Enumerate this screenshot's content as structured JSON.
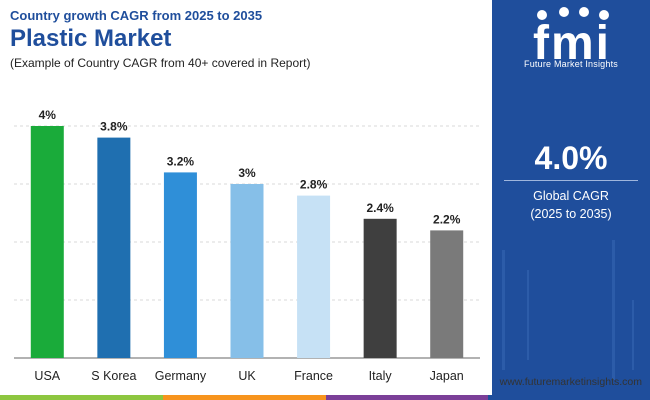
{
  "header": {
    "subtitle": "Country growth CAGR from 2025 to 2035",
    "title": "Plastic Market",
    "note": "(Example of Country CAGR from 40+ covered in Report)"
  },
  "chart_data": {
    "type": "bar",
    "title": "Plastic Market",
    "categories": [
      "USA",
      "S Korea",
      "Germany",
      "UK",
      "France",
      "Italy",
      "Japan"
    ],
    "values": [
      4.0,
      3.8,
      3.2,
      3.0,
      2.8,
      2.4,
      2.2
    ],
    "data_labels": [
      "4%",
      "3.8%",
      "3.2%",
      "3%",
      "2.8%",
      "2.4%",
      "2.2%"
    ],
    "colors": [
      "#1aab3a",
      "#1f6fb0",
      "#2f8fd8",
      "#86bfe8",
      "#c6e1f5",
      "#3f3f3f",
      "#7a7a7a"
    ],
    "ylim": [
      0,
      4.0
    ],
    "grid": true,
    "xlabel": "",
    "ylabel": ""
  },
  "panel": {
    "logo_text": "fmi",
    "logo_tagline": "Future Market Insights",
    "cagr_value": "4.0%",
    "cagr_label_line1": "Global CAGR",
    "cagr_label_line2": "(2025 to 2035)"
  },
  "footer": {
    "website": "www.futuremarketinsights.com",
    "bar_colors": [
      "#8dc63f",
      "#f7941d",
      "#7b3f98",
      "#1f4e9c"
    ]
  }
}
